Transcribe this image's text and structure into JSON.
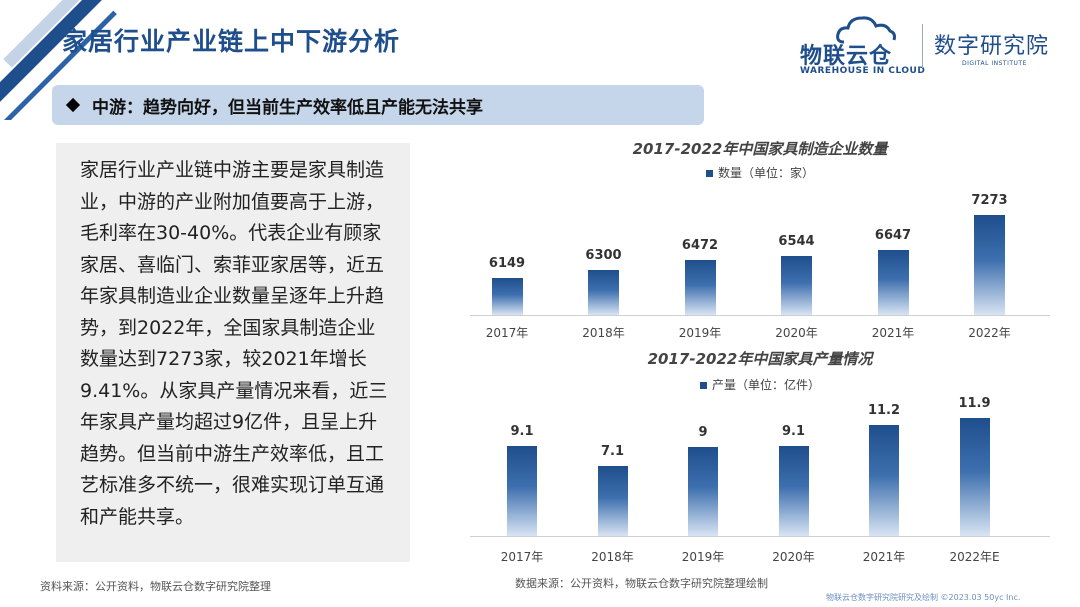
{
  "header": {
    "title": "家居行业产业链上中下游分析",
    "logo_main": "物联云仓",
    "logo_sub": "WAREHOUSE IN CLOUD",
    "institute_main": "数字研究院",
    "institute_sub": "DIGITAL INSTITUTE"
  },
  "subheading": {
    "icon": "diamond-icon",
    "text": "中游：趋势向好，但当前生产效率低且产能无法共享"
  },
  "body": {
    "text": "家居行业产业链中游主要是家具制造业，中游的产业附加值要高于上游，毛利率在30-40%。代表企业有顾家家居、喜临门、索菲亚家居等，近五年家具制造业企业数量呈逐年上升趋势，到2022年，全国家具制造企业数量达到7273家，较2021年增长9.41%。从家具产量情况来看，近三年家具产量均超过9亿件，且呈上升趋势。但当前中游生产效率低，且工艺标准多不统一，很难实现订单互通和产能共享。"
  },
  "source_left": "资料来源：公开资料，物联云仓数字研究院整理",
  "source_right": "数据来源：公开资料，物联云仓数字研究院整理绘制",
  "footer_right": "物联云仓数字研究院研究及绘制  ©2023.03 50yc Inc.",
  "colors": {
    "accent": "#1f4e8c",
    "subhead_bg": "#c5d5ea",
    "body_bg": "#efefef"
  },
  "chart_data": [
    {
      "type": "bar",
      "title": "2017-2022年中国家具制造企业数量",
      "categories": [
        "2017年",
        "2018年",
        "2019年",
        "2020年",
        "2021年",
        "2022年"
      ],
      "series": [
        {
          "name": "数量（单位：家）",
          "values": [
            6149,
            6300,
            6472,
            6544,
            6647,
            7273
          ]
        }
      ],
      "data_labels": [
        "6149",
        "6300",
        "6472",
        "6544",
        "6647",
        "7273"
      ],
      "legend": "top-center",
      "grid": false
    },
    {
      "type": "bar",
      "title": "2017-2022年中国家具产量情况",
      "categories": [
        "2017年",
        "2018年",
        "2019年",
        "2020年",
        "2021年",
        "2022年E"
      ],
      "series": [
        {
          "name": "产量（单位：亿件）",
          "values": [
            9.1,
            7.1,
            9,
            9.1,
            11.2,
            11.9
          ]
        }
      ],
      "data_labels": [
        "9.1",
        "7.1",
        "9",
        "9.1",
        "11.2",
        "11.9"
      ],
      "legend": "top-center",
      "grid": false
    }
  ]
}
